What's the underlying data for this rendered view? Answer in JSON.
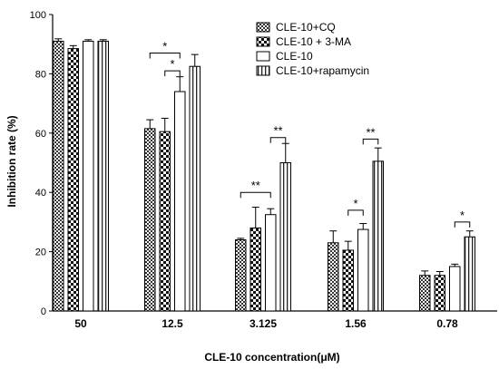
{
  "chart_data": {
    "type": "bar",
    "title": "",
    "xlabel": "CLE-10 concentration(μM)",
    "ylabel": "Inhibition rate (%)",
    "ylim": [
      0,
      100
    ],
    "yticks": [
      0,
      20,
      40,
      60,
      80,
      100
    ],
    "categories": [
      "50",
      "12.5",
      "3.125",
      "1.56",
      "0.78"
    ],
    "legend_position": "top-right",
    "grid": false,
    "series": [
      {
        "name": "CLE-10+CQ",
        "pattern": "checker-small",
        "values": [
          91,
          61.5,
          24,
          23,
          12
        ],
        "errors": [
          0.8,
          3,
          0.5,
          4,
          1.5
        ]
      },
      {
        "name": "CLE-10 + 3-MA",
        "pattern": "checker-large",
        "values": [
          88.5,
          60.5,
          28,
          20.5,
          12
        ],
        "errors": [
          1,
          4.5,
          7,
          3,
          1.3
        ]
      },
      {
        "name": "CLE-10",
        "pattern": "open",
        "values": [
          91,
          74,
          32.5,
          27.5,
          15
        ],
        "errors": [
          0.5,
          5,
          2,
          2,
          0.8
        ]
      },
      {
        "name": "CLE-10+rapamycin",
        "pattern": "vertical-stripes",
        "values": [
          91,
          82.5,
          50,
          50.5,
          25
        ],
        "errors": [
          0.5,
          4,
          6.5,
          4.5,
          2
        ]
      }
    ],
    "annotations": [
      {
        "category": 1,
        "from": 0,
        "to": 2,
        "label": "*",
        "y": 87
      },
      {
        "category": 1,
        "from": 1,
        "to": 2,
        "label": "*",
        "y": 81
      },
      {
        "category": 2,
        "from": 0,
        "to": 2,
        "label": "**",
        "y": 40
      },
      {
        "category": 2,
        "from": 2,
        "to": 3,
        "label": "**",
        "y": 58.5
      },
      {
        "category": 3,
        "from": 2,
        "to": 3,
        "label": "**",
        "y": 58
      },
      {
        "category": 3,
        "from": 1,
        "to": 2,
        "label": "*",
        "y": 34
      },
      {
        "category": 4,
        "from": 2,
        "to": 3,
        "label": "*",
        "y": 30
      }
    ]
  }
}
